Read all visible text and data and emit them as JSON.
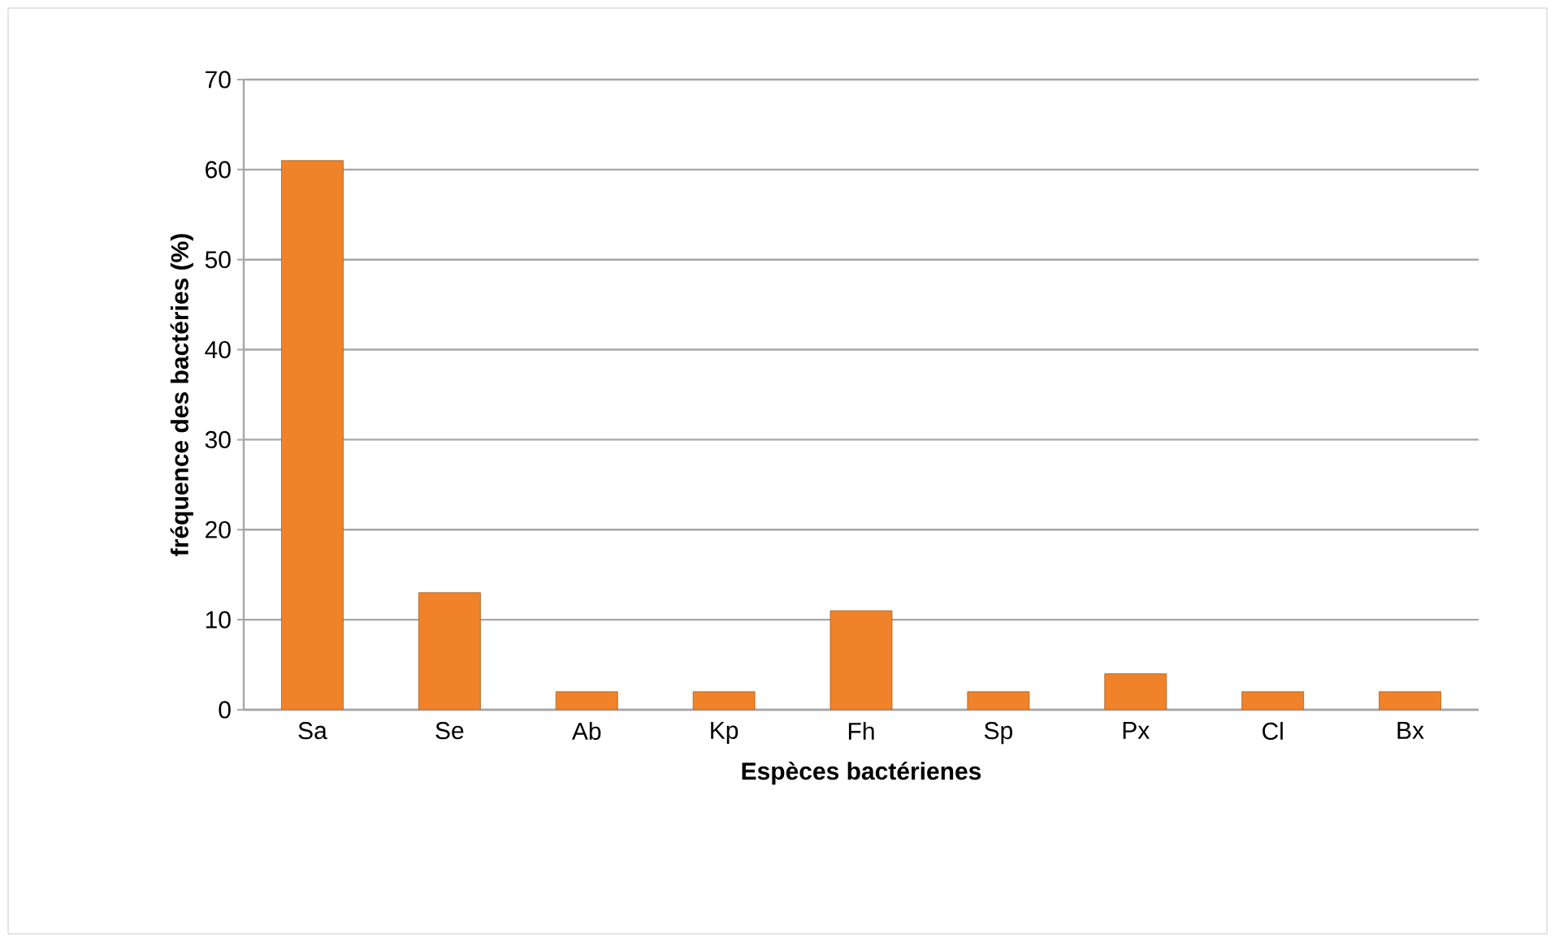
{
  "chart_data": {
    "type": "bar",
    "xlabel": "Espèces bactérienes",
    "ylabel": "fréquence des bactéries (%)",
    "categories": [
      "Sa",
      "Se",
      "Ab",
      "Kp",
      "Fh",
      "Sp",
      "Px",
      "Cl",
      "Bx"
    ],
    "values": [
      61,
      13,
      2,
      2,
      11,
      2,
      4,
      2,
      2
    ],
    "color": "#f0832a",
    "ylim": [
      0,
      70
    ],
    "yticks": [
      0,
      10,
      20,
      30,
      40,
      50,
      60,
      70
    ],
    "grid": "y"
  }
}
